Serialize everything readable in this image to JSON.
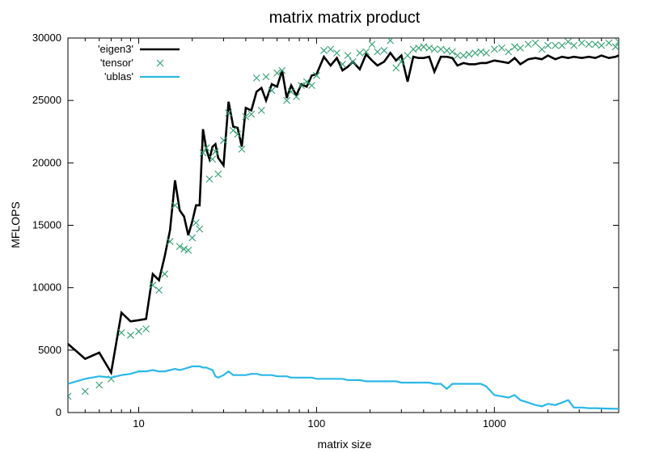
{
  "chart_data": {
    "type": "line",
    "title": "matrix matrix product",
    "xlabel": "matrix size",
    "ylabel": "MFLOPS",
    "x_scale": "log",
    "xlim": [
      4,
      5000
    ],
    "ylim": [
      0,
      30000
    ],
    "x_ticks": [
      10,
      100,
      1000
    ],
    "x_tick_labels": [
      "10",
      "100",
      "1000"
    ],
    "y_ticks": [
      0,
      5000,
      10000,
      15000,
      20000,
      25000,
      30000
    ],
    "y_tick_labels": [
      "0",
      "5000",
      "10000",
      "15000",
      "20000",
      "25000",
      "30000"
    ],
    "grid": false,
    "legend_position": "top-left",
    "series": [
      {
        "name": "'eigen3'",
        "style": "line",
        "color": "#000000",
        "x": [
          4,
          5,
          6,
          7,
          8,
          9,
          10,
          11,
          12,
          13,
          14,
          15,
          16,
          17,
          18,
          19,
          20,
          21,
          22,
          23,
          24,
          25,
          26,
          27,
          28,
          30,
          32,
          34,
          36,
          38,
          40,
          43,
          46,
          49,
          52,
          56,
          60,
          64,
          68,
          72,
          77,
          82,
          88,
          94,
          100,
          110,
          120,
          130,
          140,
          150,
          160,
          175,
          190,
          205,
          220,
          240,
          260,
          280,
          300,
          325,
          350,
          375,
          400,
          430,
          460,
          500,
          540,
          580,
          620,
          670,
          720,
          780,
          840,
          900,
          1000,
          1100,
          1200,
          1300,
          1400,
          1550,
          1700,
          1850,
          2000,
          2200,
          2400,
          2600,
          2800,
          3100,
          3400,
          3700,
          4000,
          4400,
          4800,
          5000
        ],
        "y": [
          5500,
          4300,
          4800,
          3200,
          8000,
          7300,
          7400,
          7500,
          11100,
          10600,
          12500,
          14600,
          18600,
          16200,
          15700,
          14200,
          15300,
          16600,
          16600,
          22700,
          21100,
          20300,
          21300,
          21500,
          20400,
          19800,
          24900,
          22900,
          22800,
          21300,
          24400,
          24200,
          25700,
          26000,
          25000,
          26300,
          26100,
          27400,
          25200,
          26200,
          25400,
          26300,
          26100,
          27000,
          27100,
          28500,
          27800,
          28400,
          27400,
          27700,
          28100,
          27500,
          28700,
          28200,
          27800,
          28100,
          28800,
          28200,
          28600,
          26500,
          28500,
          28400,
          28400,
          28500,
          27300,
          28500,
          28500,
          28400,
          27800,
          28000,
          27900,
          27900,
          28000,
          28000,
          28200,
          28100,
          28000,
          28400,
          27900,
          28300,
          28400,
          28300,
          28600,
          28300,
          28500,
          28400,
          28500,
          28400,
          28500,
          28400,
          28600,
          28400,
          28500,
          28600
        ]
      },
      {
        "name": "'tensor'",
        "style": "points",
        "color": "#2f9f6f",
        "x": [
          4,
          5,
          6,
          7,
          8,
          9,
          10,
          11,
          12,
          13,
          14,
          15,
          16,
          17,
          18,
          19,
          20,
          21,
          22,
          23,
          24,
          25,
          26,
          27,
          28,
          30,
          32,
          34,
          36,
          38,
          40,
          43,
          46,
          49,
          52,
          56,
          60,
          64,
          68,
          72,
          77,
          82,
          88,
          94,
          100,
          110,
          120,
          130,
          140,
          150,
          160,
          175,
          190,
          205,
          220,
          240,
          260,
          280,
          300,
          325,
          350,
          375,
          400,
          430,
          460,
          500,
          540,
          580,
          620,
          670,
          720,
          780,
          840,
          900,
          1000,
          1100,
          1200,
          1300,
          1400,
          1550,
          1700,
          1850,
          2000,
          2200,
          2400,
          2600,
          2800,
          3100,
          3400,
          3700,
          4000,
          4400,
          4800,
          5000
        ],
        "y": [
          1300,
          1700,
          2200,
          2700,
          6400,
          6200,
          6500,
          6700,
          10200,
          9800,
          11100,
          13700,
          16600,
          13300,
          13100,
          13000,
          14000,
          15200,
          14700,
          20800,
          21200,
          18700,
          20300,
          20900,
          19100,
          21800,
          24000,
          22600,
          22300,
          21100,
          23700,
          23900,
          26800,
          24200,
          26900,
          25800,
          27200,
          27400,
          25000,
          25700,
          25300,
          26200,
          26500,
          26200,
          27000,
          29000,
          29100,
          28800,
          27900,
          28600,
          28100,
          28800,
          28900,
          29500,
          28900,
          29000,
          29800,
          27600,
          28100,
          28600,
          29100,
          29200,
          29300,
          29200,
          29100,
          29100,
          29000,
          28900,
          28600,
          28600,
          28700,
          28800,
          28900,
          28800,
          29100,
          29200,
          28900,
          29300,
          29200,
          29500,
          29600,
          29100,
          29400,
          29400,
          29400,
          29700,
          29400,
          29600,
          29500,
          29500,
          29400,
          29600,
          29300,
          29700
        ]
      },
      {
        "name": "'ublas'",
        "style": "line",
        "color": "#2ab8e6",
        "x": [
          4,
          5,
          6,
          7,
          8,
          9,
          10,
          11,
          12,
          13,
          14,
          15,
          16,
          17,
          18,
          19,
          20,
          21,
          22,
          23,
          24,
          25,
          26,
          27,
          28,
          30,
          32,
          34,
          36,
          38,
          40,
          43,
          46,
          49,
          52,
          56,
          60,
          64,
          68,
          72,
          77,
          82,
          88,
          94,
          100,
          110,
          120,
          130,
          140,
          150,
          160,
          175,
          190,
          205,
          220,
          240,
          260,
          280,
          300,
          325,
          350,
          375,
          400,
          430,
          460,
          500,
          540,
          580,
          620,
          670,
          720,
          780,
          840,
          900,
          1000,
          1100,
          1200,
          1300,
          1400,
          1550,
          1700,
          1850,
          2000,
          2200,
          2400,
          2600,
          2800,
          3100,
          3400,
          3700,
          4000,
          4400,
          4800,
          5000
        ],
        "y": [
          2300,
          2700,
          2900,
          2800,
          3000,
          3100,
          3300,
          3300,
          3400,
          3300,
          3300,
          3400,
          3500,
          3400,
          3500,
          3600,
          3700,
          3700,
          3700,
          3600,
          3600,
          3500,
          3400,
          2900,
          2800,
          3000,
          3300,
          3000,
          3000,
          3000,
          3000,
          3100,
          3100,
          3000,
          3000,
          3000,
          2900,
          2900,
          2900,
          2800,
          2800,
          2800,
          2800,
          2800,
          2700,
          2700,
          2700,
          2700,
          2700,
          2600,
          2600,
          2600,
          2500,
          2500,
          2500,
          2500,
          2500,
          2500,
          2400,
          2400,
          2400,
          2400,
          2400,
          2400,
          2300,
          2300,
          1900,
          2300,
          2300,
          2300,
          2300,
          2300,
          2300,
          2100,
          1400,
          1300,
          1200,
          1400,
          1000,
          800,
          600,
          500,
          700,
          600,
          800,
          1000,
          400,
          400,
          350,
          350,
          330,
          320,
          300,
          300
        ]
      }
    ]
  }
}
